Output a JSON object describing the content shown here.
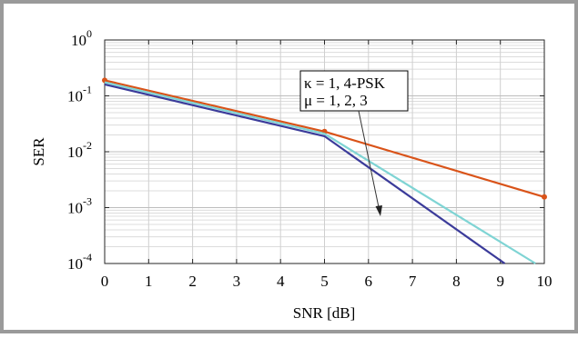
{
  "chart_data": {
    "type": "line",
    "xlabel": "SNR [dB]",
    "ylabel": "SER",
    "xlim": [
      0,
      10
    ],
    "ylim_log10": [
      -4,
      0
    ],
    "log_scale_y": true,
    "grid": true,
    "x_ticks": [
      "0",
      "1",
      "2",
      "3",
      "4",
      "5",
      "6",
      "7",
      "8",
      "9",
      "10"
    ],
    "y_ticks": [
      {
        "base": "10",
        "exp": "0"
      },
      {
        "base": "10",
        "exp": "-1"
      },
      {
        "base": "10",
        "exp": "-2"
      },
      {
        "base": "10",
        "exp": "-3"
      },
      {
        "base": "10",
        "exp": "-4"
      }
    ],
    "annotation": {
      "line1": "κ = 1, 4-PSK",
      "line2": "μ = 1, 2, 3"
    },
    "series": [
      {
        "color": "#d95319",
        "markers": true,
        "x": [
          0,
          5,
          10
        ],
        "y": [
          0.19,
          0.023,
          0.00155
        ]
      },
      {
        "color": "#7fd4d4",
        "markers": false,
        "x": [
          0,
          5,
          9.8
        ],
        "y": [
          0.175,
          0.021,
          0.0001
        ]
      },
      {
        "color": "#3b3b9a",
        "markers": false,
        "x": [
          0,
          5,
          9.1
        ],
        "y": [
          0.16,
          0.019,
          0.0001
        ]
      }
    ]
  }
}
